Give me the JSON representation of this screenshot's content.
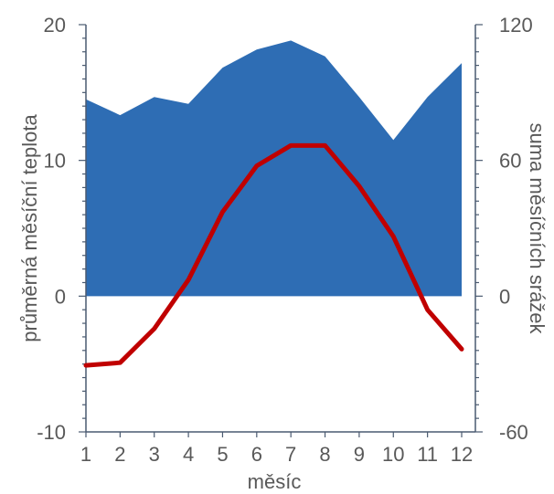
{
  "chart_data": {
    "type": "area+line",
    "xlabel": "měsíc",
    "ylabel_left": "průměrná měsíční teplota",
    "ylabel_right": "suma měsíčních srážek",
    "categories": [
      "1",
      "2",
      "3",
      "4",
      "5",
      "6",
      "7",
      "8",
      "9",
      "10",
      "11",
      "12"
    ],
    "y_left": {
      "min": -10,
      "max": 20,
      "ticks": [
        "-10",
        "0",
        "10",
        "20"
      ],
      "minor_step": 1
    },
    "y_right": {
      "min": -60,
      "max": 120,
      "ticks": [
        "-60",
        "0",
        "60",
        "120"
      ],
      "minor_step": 6
    },
    "series": [
      {
        "kind": "area",
        "axis": "right",
        "color": "#2e6db4",
        "values": [
          87,
          80,
          88,
          85,
          101,
          109,
          113,
          106,
          88,
          69,
          88,
          103
        ]
      },
      {
        "kind": "line",
        "axis": "left",
        "color": "#c00000",
        "values": [
          -5.1,
          -4.9,
          -2.4,
          1.2,
          6.2,
          9.6,
          11.1,
          11.1,
          8.1,
          4.4,
          -1.0,
          -3.9
        ]
      }
    ],
    "grid": false,
    "legend": "none"
  }
}
